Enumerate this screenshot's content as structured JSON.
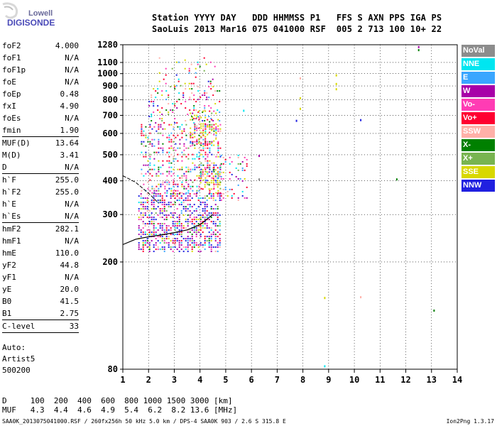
{
  "logo": {
    "line1": "Lowell",
    "line2": "DIGISONDE"
  },
  "header": {
    "line1": "Station YYYY DAY   DDD HHMMSS P1   FFS S AXN PPS IGA PS",
    "line2": "SaoLuis 2013 Mar16 075 041000 RSF  005 2 713 100 10+ 22"
  },
  "params": {
    "group1": [
      {
        "label": "foF2",
        "value": "4.000"
      },
      {
        "label": "foF1",
        "value": "N/A"
      },
      {
        "label": "foF1p",
        "value": "N/A"
      },
      {
        "label": "foE",
        "value": "N/A"
      },
      {
        "label": "foEp",
        "value": "0.48"
      },
      {
        "label": "fxI",
        "value": "4.90"
      },
      {
        "label": "foEs",
        "value": "N/A"
      },
      {
        "label": "fmin",
        "value": "1.90"
      }
    ],
    "group2": [
      {
        "label": "MUF(D)",
        "value": "13.64"
      },
      {
        "label": "M(D)",
        "value": "3.41"
      },
      {
        "label": "D",
        "value": "N/A"
      }
    ],
    "group3": [
      {
        "label": "h`F",
        "value": "255.0"
      },
      {
        "label": "h`F2",
        "value": "255.0"
      },
      {
        "label": "h`E",
        "value": "N/A"
      },
      {
        "label": "h`Es",
        "value": "N/A"
      }
    ],
    "group4": [
      {
        "label": "hmF2",
        "value": "282.1"
      },
      {
        "label": "hmF1",
        "value": "N/A"
      },
      {
        "label": "hmE",
        "value": "110.0"
      },
      {
        "label": "yF2",
        "value": "44.8"
      },
      {
        "label": "yF1",
        "value": "N/A"
      },
      {
        "label": "yE",
        "value": "20.0"
      },
      {
        "label": "B0",
        "value": "41.5"
      },
      {
        "label": "B1",
        "value": "2.75"
      }
    ],
    "group5": [
      {
        "label": "C-level",
        "value": "33"
      }
    ]
  },
  "extra": {
    "line1": "Auto:",
    "line2": "Artist5",
    "line3": "500200"
  },
  "legend": [
    {
      "label": "NoVal",
      "color": "#8c8c8c"
    },
    {
      "label": "NNE",
      "color": "#00e6f0"
    },
    {
      "label": "E",
      "color": "#3aa6ff"
    },
    {
      "label": "W",
      "color": "#a800a8"
    },
    {
      "label": "Vo-",
      "color": "#ff3cb4"
    },
    {
      "label": "Vo+",
      "color": "#ff0030"
    },
    {
      "label": "SSW",
      "color": "#ffb0a8"
    },
    {
      "label": "X-",
      "color": "#008000"
    },
    {
      "label": "X+",
      "color": "#78b450"
    },
    {
      "label": "SSE",
      "color": "#d8d800"
    },
    {
      "label": "NNW",
      "color": "#2020e0"
    }
  ],
  "dmuf": {
    "line1": "D     100  200  400  600  800 1000 1500 3000 [km]",
    "line2": "MUF   4.3  4.4  4.6  4.9  5.4  6.2  8.2 13.6 [MHz]"
  },
  "footer": "SAA0K_2013075041000.RSF / 260fx256h 50 kHz 5.0 km / DPS-4 SAA0K 903 / 2.6 S 315.8 E",
  "version": "Ion2Png 1.3.17",
  "chart_data": {
    "type": "scatter",
    "title": "",
    "xlabel": "",
    "ylabel": "",
    "xlim": [
      1,
      14
    ],
    "ylim": [
      80,
      1280
    ],
    "y_scale": "log",
    "x_ticks": [
      1,
      2,
      3,
      4,
      5,
      6,
      7,
      8,
      9,
      10,
      11,
      12,
      13,
      14
    ],
    "x_tick_labels": [
      "1",
      "2",
      "3",
      "4",
      "5",
      "6",
      "7",
      "8",
      "9",
      "10",
      "11",
      "12",
      "13",
      "14"
    ],
    "y_ticks": [
      80,
      200,
      300,
      400,
      500,
      600,
      700,
      800,
      900,
      1000,
      1100,
      1280
    ],
    "y_tick_labels": [
      "80",
      "200",
      "300",
      "400",
      "500",
      "600",
      "700",
      "800",
      "900",
      "1000",
      "1100",
      "1280"
    ],
    "grid": true,
    "legend_position": "right",
    "trace": {
      "x": [
        1.0,
        1.5,
        2.0,
        2.5,
        3.0,
        3.5,
        4.0,
        4.5
      ],
      "y": [
        232,
        243,
        248,
        252,
        257,
        263,
        275,
        300
      ]
    },
    "trace_upper": {
      "x": [
        1.0,
        1.5,
        2.0,
        2.4
      ],
      "y": [
        418,
        395,
        360,
        330
      ]
    },
    "clusters": [
      {
        "x": [
          1.6,
          4.8
        ],
        "y": [
          220,
          360
        ],
        "density": 0.55
      },
      {
        "x": [
          1.7,
          4.8
        ],
        "y": [
          360,
          650
        ],
        "density": 0.32
      },
      {
        "x": [
          2.0,
          4.8
        ],
        "y": [
          650,
          900
        ],
        "density": 0.18
      },
      {
        "x": [
          2.4,
          4.6
        ],
        "y": [
          900,
          1150
        ],
        "density": 0.08
      },
      {
        "x": [
          3.6,
          4.7
        ],
        "y": [
          540,
          730
        ],
        "density": 0.35
      },
      {
        "x": [
          4.0,
          4.8
        ],
        "y": [
          370,
          450
        ],
        "density": 0.5
      },
      {
        "x": [
          4.8,
          5.8
        ],
        "y": [
          330,
          500
        ],
        "density": 0.15
      }
    ],
    "points": [
      {
        "x": 12.5,
        "y": 1255,
        "s": "W"
      },
      {
        "x": 12.5,
        "y": 1222,
        "s": "X-"
      },
      {
        "x": 9.3,
        "y": 985,
        "s": "SSE"
      },
      {
        "x": 9.3,
        "y": 915,
        "s": "SSE"
      },
      {
        "x": 9.3,
        "y": 875,
        "s": "SSE"
      },
      {
        "x": 7.9,
        "y": 960,
        "s": "SSW"
      },
      {
        "x": 7.9,
        "y": 810,
        "s": "SSE"
      },
      {
        "x": 7.9,
        "y": 740,
        "s": "SSE"
      },
      {
        "x": 5.7,
        "y": 728,
        "s": "NNE"
      },
      {
        "x": 7.75,
        "y": 668,
        "s": "NNW"
      },
      {
        "x": 10.25,
        "y": 672,
        "s": "NNW"
      },
      {
        "x": 6.3,
        "y": 495,
        "s": "W"
      },
      {
        "x": 6.3,
        "y": 405,
        "s": "NoVal"
      },
      {
        "x": 11.65,
        "y": 405,
        "s": "X-"
      },
      {
        "x": 8.85,
        "y": 147,
        "s": "SSE"
      },
      {
        "x": 8.85,
        "y": 82,
        "s": "NNE"
      },
      {
        "x": 10.25,
        "y": 148,
        "s": "SSW"
      },
      {
        "x": 13.1,
        "y": 132,
        "s": "X-"
      }
    ]
  }
}
